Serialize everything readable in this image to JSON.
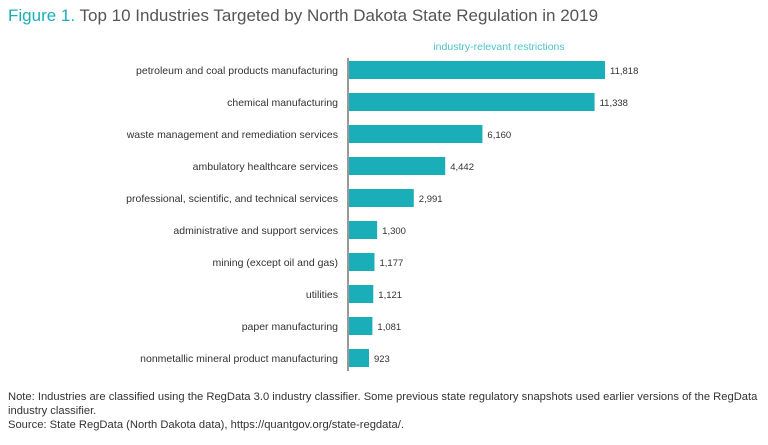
{
  "title": {
    "figure_label": "Figure 1.",
    "text": "Top 10 Industries Targeted by North Dakota State Regulation in 2019"
  },
  "chart_data": {
    "type": "bar",
    "orientation": "horizontal",
    "series_label": "industry-relevant restrictions",
    "categories": [
      "petroleum and coal products manufacturing",
      "chemical manufacturing",
      "waste management and remediation services",
      "ambulatory healthcare services",
      "professional, scientific, and technical services",
      "administrative and support services",
      "mining (except oil and gas)",
      "utilities",
      "paper manufacturing",
      "nonmetallic mineral product manufacturing"
    ],
    "values": [
      11818,
      11338,
      6160,
      4442,
      2991,
      1300,
      1177,
      1121,
      1081,
      923
    ],
    "value_labels": [
      "11,818",
      "11,338",
      "6,160",
      "4,442",
      "2,991",
      "1,300",
      "1,177",
      "1,121",
      "1,081",
      "923"
    ],
    "xlim": [
      0,
      11818
    ],
    "grid": false,
    "bar_color": "#1aafb8",
    "label_color": "#4cc3cc"
  },
  "note": {
    "line1": "Note: Industries are classified using the RegData 3.0 industry classifier. Some previous state regulatory snapshots used earlier versions of the RegData industry classifier.",
    "source": "Source: State RegData (North Dakota data), https://quantgov.org/state-regdata/."
  }
}
